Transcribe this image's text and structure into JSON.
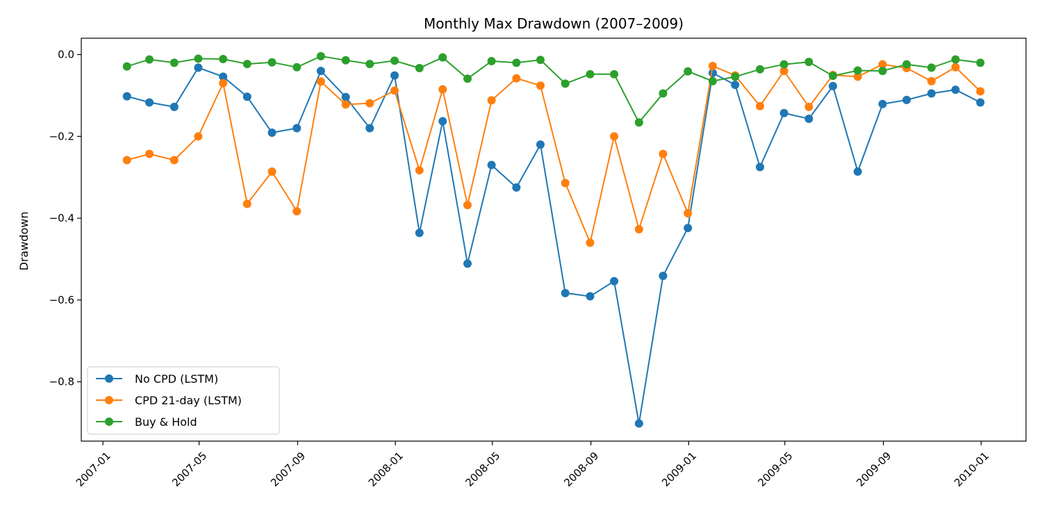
{
  "chart_data": {
    "type": "line",
    "title": "Monthly Max Drawdown (2007–2009)",
    "xlabel": "",
    "ylabel": "Drawdown",
    "x": [
      "2007-01-31",
      "2007-02-28",
      "2007-03-31",
      "2007-04-30",
      "2007-05-31",
      "2007-06-30",
      "2007-07-31",
      "2007-08-31",
      "2007-09-30",
      "2007-10-31",
      "2007-11-30",
      "2007-12-31",
      "2008-01-31",
      "2008-02-29",
      "2008-03-31",
      "2008-04-30",
      "2008-05-31",
      "2008-06-30",
      "2008-07-31",
      "2008-08-31",
      "2008-09-30",
      "2008-10-31",
      "2008-11-30",
      "2008-12-31",
      "2009-01-31",
      "2009-02-28",
      "2009-03-31",
      "2009-04-30",
      "2009-05-31",
      "2009-06-30",
      "2009-07-31",
      "2009-08-31",
      "2009-09-30",
      "2009-10-31",
      "2009-11-30",
      "2009-12-31"
    ],
    "x_ticks": [
      "2007-01",
      "2007-05",
      "2007-09",
      "2008-01",
      "2008-05",
      "2008-09",
      "2009-01",
      "2009-05",
      "2009-09",
      "2010-01"
    ],
    "y_ticks": [
      0.0,
      -0.2,
      -0.4,
      -0.6,
      -0.8
    ],
    "y_tick_labels": [
      "0.0",
      "−0.2",
      "−0.4",
      "−0.6",
      "−0.8"
    ],
    "xlim": [
      "2006-12-05",
      "2010-02-26"
    ],
    "ylim": [
      -0.945,
      0.04
    ],
    "grid": false,
    "legend_position": "lower-left",
    "series": [
      {
        "name": "No CPD (LSTM)",
        "color": "#1f77b4",
        "values": [
          -0.102,
          -0.117,
          -0.128,
          -0.032,
          -0.054,
          -0.103,
          -0.191,
          -0.18,
          -0.04,
          -0.104,
          -0.18,
          -0.051,
          -0.436,
          -0.163,
          -0.511,
          -0.27,
          -0.325,
          -0.22,
          -0.583,
          -0.591,
          -0.554,
          -0.902,
          -0.541,
          -0.424,
          -0.045,
          -0.074,
          -0.275,
          -0.143,
          -0.157,
          -0.077,
          -0.286,
          -0.121,
          -0.111,
          -0.095,
          -0.086,
          -0.117
        ]
      },
      {
        "name": "CPD 21-day (LSTM)",
        "color": "#ff7f0e",
        "values": [
          -0.258,
          -0.243,
          -0.258,
          -0.2,
          -0.07,
          -0.365,
          -0.286,
          -0.383,
          -0.066,
          -0.122,
          -0.119,
          -0.088,
          -0.283,
          -0.085,
          -0.368,
          -0.112,
          -0.058,
          -0.076,
          -0.314,
          -0.46,
          -0.2,
          -0.427,
          -0.243,
          -0.388,
          -0.028,
          -0.051,
          -0.126,
          -0.04,
          -0.128,
          -0.05,
          -0.054,
          -0.024,
          -0.033,
          -0.065,
          -0.031,
          -0.09
        ]
      },
      {
        "name": "Buy & Hold",
        "color": "#2ca02c",
        "values": [
          -0.029,
          -0.012,
          -0.02,
          -0.01,
          -0.011,
          -0.023,
          -0.019,
          -0.031,
          -0.004,
          -0.014,
          -0.023,
          -0.015,
          -0.033,
          -0.007,
          -0.059,
          -0.016,
          -0.02,
          -0.013,
          -0.071,
          -0.048,
          -0.048,
          -0.166,
          -0.095,
          -0.041,
          -0.065,
          -0.054,
          -0.036,
          -0.024,
          -0.018,
          -0.052,
          -0.039,
          -0.04,
          -0.024,
          -0.032,
          -0.012,
          -0.02
        ]
      }
    ]
  }
}
